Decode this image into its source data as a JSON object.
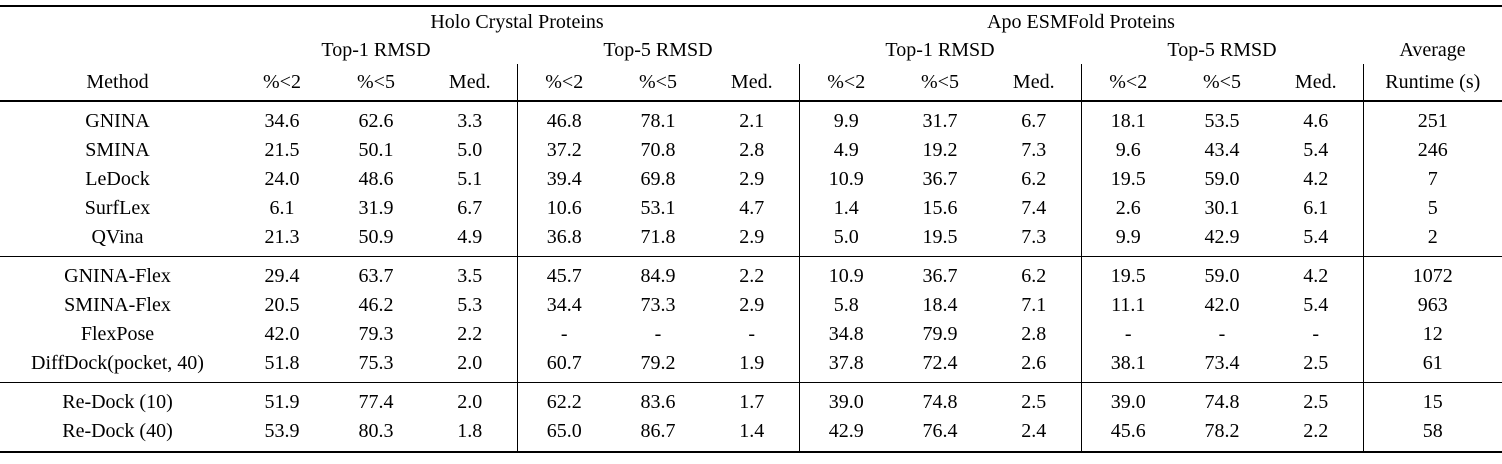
{
  "table": {
    "col_groups": [
      {
        "label": "Holo Crystal Proteins"
      },
      {
        "label": "Apo ESMFold Proteins"
      }
    ],
    "sub_groups": [
      "Top-1 RMSD",
      "Top-5 RMSD",
      "Top-1 RMSD",
      "Top-5 RMSD"
    ],
    "average_label": "Average",
    "runtime_label": "Runtime (s)",
    "method_label": "Method",
    "metric_labels": [
      "%<2",
      "%<5",
      "Med."
    ],
    "groups": [
      {
        "rows": [
          {
            "method": "GNINA",
            "bold_method": false,
            "values": [
              "34.6",
              "62.6",
              "3.3",
              "46.8",
              "78.1",
              "2.1",
              "9.9",
              "31.7",
              "6.7",
              "18.1",
              "53.5",
              "4.6",
              "251"
            ],
            "bold": []
          },
          {
            "method": "SMINA",
            "bold_method": false,
            "values": [
              "21.5",
              "50.1",
              "5.0",
              "37.2",
              "70.8",
              "2.8",
              "4.9",
              "19.2",
              "7.3",
              "9.6",
              "43.4",
              "5.4",
              "246"
            ],
            "bold": []
          },
          {
            "method": "LeDock",
            "bold_method": false,
            "values": [
              "24.0",
              "48.6",
              "5.1",
              "39.4",
              "69.8",
              "2.9",
              "10.9",
              "36.7",
              "6.2",
              "19.5",
              "59.0",
              "4.2",
              "7"
            ],
            "bold": []
          },
          {
            "method": "SurfLex",
            "bold_method": false,
            "values": [
              "6.1",
              "31.9",
              "6.7",
              "10.6",
              "53.1",
              "4.7",
              "1.4",
              "15.6",
              "7.4",
              "2.6",
              "30.1",
              "6.1",
              "5"
            ],
            "bold": []
          },
          {
            "method": "QVina",
            "bold_method": false,
            "values": [
              "21.3",
              "50.9",
              "4.9",
              "36.8",
              "71.8",
              "2.9",
              "5.0",
              "19.5",
              "7.3",
              "9.9",
              "42.9",
              "5.4",
              "2"
            ],
            "bold": []
          }
        ]
      },
      {
        "rows": [
          {
            "method": "GNINA-Flex",
            "bold_method": false,
            "values": [
              "29.4",
              "63.7",
              "3.5",
              "45.7",
              "84.9",
              "2.2",
              "10.9",
              "36.7",
              "6.2",
              "19.5",
              "59.0",
              "4.2",
              "1072"
            ],
            "bold": []
          },
          {
            "method": "SMINA-Flex",
            "bold_method": false,
            "values": [
              "20.5",
              "46.2",
              "5.3",
              "34.4",
              "73.3",
              "2.9",
              "5.8",
              "18.4",
              "7.1",
              "11.1",
              "42.0",
              "5.4",
              "963"
            ],
            "bold": []
          },
          {
            "method": "FlexPose",
            "bold_method": false,
            "values": [
              "42.0",
              "79.3",
              "2.2",
              "-",
              "-",
              "-",
              "34.8",
              "79.9",
              "2.8",
              "-",
              "-",
              "-",
              "12"
            ],
            "bold": [
              7
            ]
          },
          {
            "method": "DiffDock(pocket, 40)",
            "bold_method": false,
            "values": [
              "51.8",
              "75.3",
              "2.0",
              "60.7",
              "79.2",
              "1.9",
              "37.8",
              "72.4",
              "2.6",
              "38.1",
              "73.4",
              "2.5",
              "61"
            ],
            "bold": []
          }
        ]
      },
      {
        "rows": [
          {
            "method": "Re-Dock (10)",
            "bold_method": true,
            "values": [
              "51.9",
              "77.4",
              "2.0",
              "62.2",
              "83.6",
              "1.7",
              "39.0",
              "74.8",
              "2.5",
              "39.0",
              "74.8",
              "2.5",
              "15"
            ],
            "bold": []
          },
          {
            "method": "Re-Dock (40)",
            "bold_method": true,
            "values": [
              "53.9",
              "80.3",
              "1.8",
              "65.0",
              "86.7",
              "1.4",
              "42.9",
              "76.4",
              "2.4",
              "45.6",
              "78.2",
              "2.2",
              "58"
            ],
            "bold": [
              0,
              1,
              2,
              3,
              4,
              5,
              6,
              8,
              9,
              10,
              11
            ]
          }
        ]
      }
    ]
  }
}
